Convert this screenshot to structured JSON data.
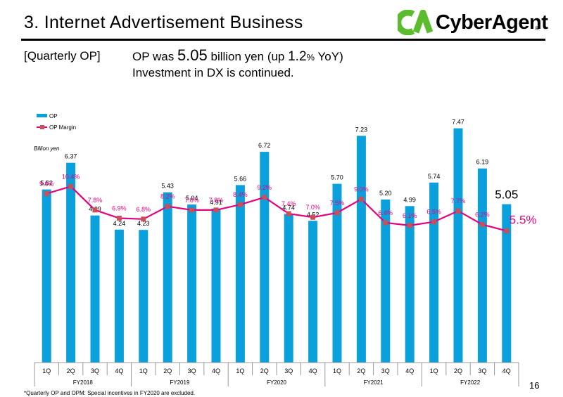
{
  "header": {
    "title": "3. Internet Advertisement Business",
    "logo_text": "CyberAgent",
    "logo_reg": "®"
  },
  "summary": {
    "section_label": "[Quarterly OP]",
    "headline_prefix": "OP was ",
    "headline_value": "5.05",
    "headline_mid": " billion yen (up ",
    "headline_pct": "1.2",
    "headline_pct_sign": "%",
    "headline_suffix": " YoY)",
    "line2": "Investment in DX is continued."
  },
  "footer": {
    "footnote": "*Quarterly OP and OPM: Special incentives in FY2020 are excluded.",
    "page_number": "16"
  },
  "colors": {
    "bar": "#0aa0dc",
    "line": "#e6007e",
    "marker": "#c8505a",
    "pct_label": "#e6007e",
    "logo_green": "#5dbb2f"
  },
  "chart_data": {
    "type": "bar",
    "unit_label": "Billion yen",
    "legend": [
      "OP",
      "OP Margin"
    ],
    "legend_position": "top-left",
    "categories": [
      "1Q",
      "2Q",
      "3Q",
      "4Q",
      "1Q",
      "2Q",
      "3Q",
      "4Q",
      "1Q",
      "2Q",
      "3Q",
      "4Q",
      "1Q",
      "2Q",
      "3Q",
      "4Q",
      "1Q",
      "2Q",
      "3Q",
      "4Q"
    ],
    "fiscal_years": [
      "FY2018",
      "FY2019",
      "FY2020",
      "FY2021",
      "FY2022"
    ],
    "series": [
      {
        "name": "OP",
        "type": "bar",
        "values": [
          5.52,
          6.37,
          4.69,
          4.24,
          4.23,
          5.43,
          5.04,
          4.91,
          5.66,
          6.72,
          4.74,
          4.52,
          5.7,
          7.23,
          5.2,
          4.99,
          5.74,
          7.47,
          6.19,
          5.05
        ],
        "labels": [
          "5.52",
          "6.37",
          "4.69",
          "4.24",
          "4.23",
          "5.43",
          "5.04",
          "4.91",
          "5.66",
          "6.72",
          "4.74",
          "4.52",
          "5.70",
          "7.23",
          "5.20",
          "4.99",
          "5.74",
          "7.47",
          "6.19",
          "5.05"
        ]
      },
      {
        "name": "OP Margin",
        "type": "line",
        "values": [
          9.6,
          10.4,
          7.8,
          6.9,
          6.8,
          8.2,
          7.8,
          7.8,
          8.4,
          9.2,
          7.4,
          7.0,
          7.5,
          9.0,
          6.4,
          6.1,
          6.5,
          7.7,
          6.2,
          5.5
        ],
        "labels": [
          "9.6%",
          "10.4%",
          "7.8%",
          "6.9%",
          "6.8%",
          "8.2%",
          "7.8%",
          "7.8%",
          "8.4%",
          "9.2%",
          "7.4%",
          "7.0%",
          "7.5%",
          "9.0%",
          "6.4%",
          "6.1%",
          "6.5%",
          "7.7%",
          "6.2%",
          "5.5%"
        ]
      }
    ],
    "bar_ylim": [
      0,
      8.2
    ],
    "line_ylim": [
      -9,
      17
    ]
  }
}
